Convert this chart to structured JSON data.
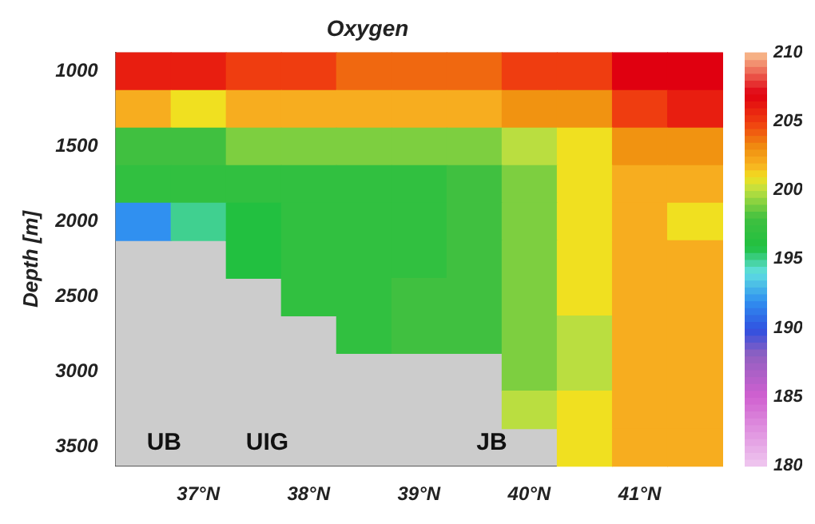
{
  "chart_data": {
    "type": "heatmap",
    "title": "Oxygen",
    "ylabel": "Depth [m]",
    "categories": [
      null,
      "37°N",
      null,
      "38°N",
      null,
      "39°N",
      null,
      "40°N",
      null,
      "41°N",
      null
    ],
    "y_categories": [
      "1000",
      null,
      "1500",
      null,
      "2000",
      null,
      "2500",
      null,
      "3000",
      null,
      "3500"
    ],
    "cells": [
      [
        206,
        206,
        205,
        205,
        204,
        204,
        204,
        205,
        205,
        207,
        207
      ],
      [
        202,
        201,
        202,
        202,
        202,
        202,
        202,
        203,
        203,
        205,
        206
      ],
      [
        198,
        198,
        199,
        199,
        199,
        199,
        199,
        200,
        201,
        203,
        203
      ],
      [
        197,
        197,
        197,
        197,
        197,
        197,
        198,
        199,
        201,
        202,
        202
      ],
      [
        192,
        195,
        196,
        197,
        197,
        197,
        198,
        199,
        201,
        202,
        201
      ],
      [
        null,
        null,
        196,
        197,
        197,
        197,
        198,
        199,
        201,
        202,
        202
      ],
      [
        null,
        null,
        null,
        197,
        197,
        198,
        198,
        199,
        201,
        202,
        202
      ],
      [
        null,
        null,
        null,
        null,
        197,
        198,
        198,
        199,
        200,
        202,
        202
      ],
      [
        null,
        null,
        null,
        null,
        null,
        null,
        null,
        199,
        200,
        202,
        202
      ],
      [
        null,
        null,
        null,
        null,
        null,
        null,
        null,
        200,
        201,
        202,
        202
      ],
      [
        null,
        null,
        null,
        null,
        null,
        null,
        null,
        null,
        201,
        202,
        202
      ]
    ],
    "clim": [
      180,
      210
    ],
    "cticks": [
      180,
      185,
      190,
      195,
      200,
      205,
      210
    ],
    "annotations": [
      "UB",
      "UIG",
      "JB"
    ]
  }
}
